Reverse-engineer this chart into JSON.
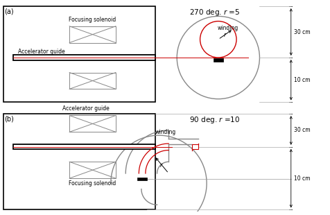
{
  "fig_width": 4.77,
  "fig_height": 3.1,
  "panel_a_label": "(a)",
  "panel_b_label": "(b)",
  "panel_a_title": "270 deg. $r$ =5",
  "panel_b_title": "90 deg. $r$ =10",
  "acc_guide_label": "Accelerator guide",
  "focusing_label_a": "Focusing solenoid",
  "focusing_label_b": "Focusing solenoid",
  "winding_label": "winding",
  "dim_30": "30 cm",
  "dim_10": "10 cm",
  "coil_color": "#888888",
  "beam_color": "#cc0000",
  "box_color": "#000000",
  "circle_gray": "#888888",
  "dim_line_color": "#444444"
}
